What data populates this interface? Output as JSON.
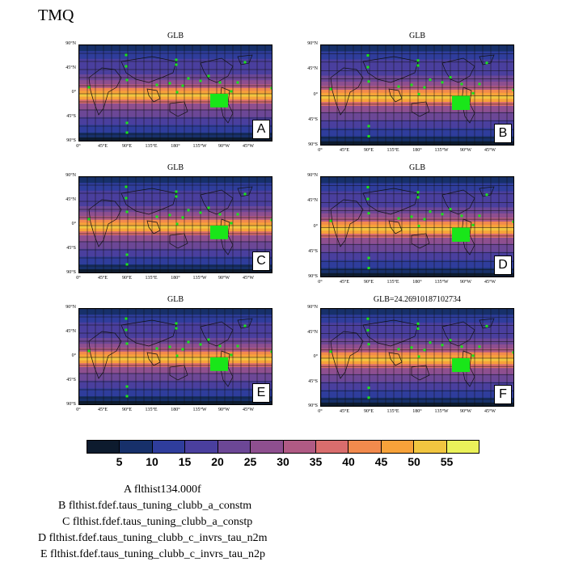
{
  "title": "TMQ",
  "panels": [
    {
      "title": "GLB",
      "letter": "A"
    },
    {
      "title": "GLB",
      "letter": "B"
    },
    {
      "title": "GLB",
      "letter": "C"
    },
    {
      "title": "GLB",
      "letter": "D"
    },
    {
      "title": "GLB",
      "letter": "E"
    },
    {
      "title": "GLB=24.26910187102734",
      "letter": "F"
    }
  ],
  "lat_labels": [
    "90°N",
    "45°N",
    "0°",
    "45°S",
    "90°S"
  ],
  "lon_labels": [
    "0°",
    "45°E",
    "90°E",
    "135°E",
    "180°",
    "135°W",
    "90°W",
    "45°W"
  ],
  "colorbar": {
    "colors": [
      "#0d1b2e",
      "#17306a",
      "#2f3d9c",
      "#4a3f9e",
      "#6c4796",
      "#8e4f8f",
      "#b05a84",
      "#d96d6d",
      "#f28a4d",
      "#f7a23a",
      "#f2c640",
      "#ebf25a"
    ],
    "ticks": [
      "5",
      "10",
      "15",
      "20",
      "25",
      "30",
      "35",
      "40",
      "45",
      "50",
      "55"
    ]
  },
  "legend": [
    "A  flthist134.000f",
    "B  flthist.fdef.taus_tuning_clubb_a_constm",
    "C  flthist.fdef.taus_tuning_clubb_a_constp",
    "D  flthist.fdef.taus_tuning_clubb_c_invrs_tau_n2m",
    "E  flthist.fdef.taus_tuning_clubb_c_invrs_tau_n2p"
  ]
}
